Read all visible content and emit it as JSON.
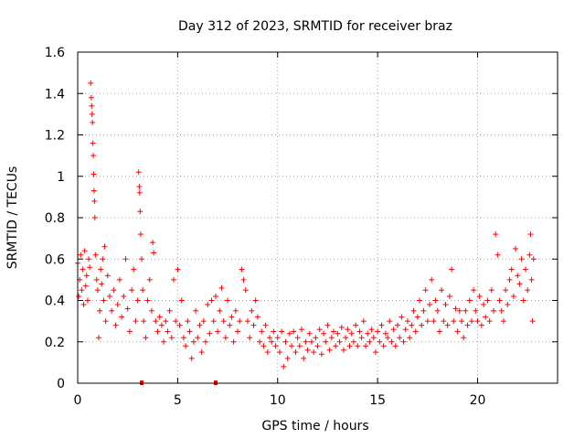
{
  "chart_data": {
    "type": "scatter",
    "title": "Day 312 of 2023, SRMTID for receiver braz",
    "xlabel": "GPS time / hours",
    "ylabel": "SRMTID / TECUs",
    "xlim": [
      0,
      24
    ],
    "ylim": [
      0,
      1.6
    ],
    "xticks": [
      0,
      5,
      10,
      15,
      20
    ],
    "xtick_labels": [
      "0",
      "5",
      "10",
      "15",
      "20"
    ],
    "yticks": [
      0,
      0.2,
      0.4,
      0.6,
      0.8,
      1.0,
      1.2,
      1.4,
      1.6
    ],
    "ytick_labels": [
      "0",
      "0.2",
      "0.4",
      "0.6",
      "0.8",
      "1",
      "1.2",
      "1.4",
      "1.6"
    ],
    "grid": true,
    "marker": "plus",
    "color": "#ff0000",
    "series": [
      {
        "name": "SRMTID",
        "points": [
          [
            0.0,
            0.58
          ],
          [
            0.05,
            0.42
          ],
          [
            0.1,
            0.5
          ],
          [
            0.15,
            0.62
          ],
          [
            0.2,
            0.45
          ],
          [
            0.25,
            0.55
          ],
          [
            0.3,
            0.38
          ],
          [
            0.35,
            0.64
          ],
          [
            0.4,
            0.47
          ],
          [
            0.45,
            0.52
          ],
          [
            0.5,
            0.4
          ],
          [
            0.55,
            0.6
          ],
          [
            0.6,
            0.56
          ],
          [
            0.65,
            1.45
          ],
          [
            0.68,
            1.38
          ],
          [
            0.7,
            1.34
          ],
          [
            0.72,
            1.3
          ],
          [
            0.74,
            1.26
          ],
          [
            0.76,
            1.16
          ],
          [
            0.78,
            1.1
          ],
          [
            0.8,
            1.01
          ],
          [
            0.82,
            0.93
          ],
          [
            0.84,
            0.88
          ],
          [
            0.86,
            0.8
          ],
          [
            0.9,
            0.62
          ],
          [
            0.95,
            0.5
          ],
          [
            1.0,
            0.45
          ],
          [
            1.05,
            0.22
          ],
          [
            1.1,
            0.35
          ],
          [
            1.15,
            0.55
          ],
          [
            1.2,
            0.48
          ],
          [
            1.25,
            0.6
          ],
          [
            1.3,
            0.4
          ],
          [
            1.35,
            0.66
          ],
          [
            1.4,
            0.3
          ],
          [
            1.5,
            0.52
          ],
          [
            1.6,
            0.42
          ],
          [
            1.7,
            0.35
          ],
          [
            1.8,
            0.45
          ],
          [
            1.9,
            0.28
          ],
          [
            2.0,
            0.38
          ],
          [
            2.1,
            0.5
          ],
          [
            2.2,
            0.32
          ],
          [
            2.3,
            0.42
          ],
          [
            2.4,
            0.6
          ],
          [
            2.5,
            0.36
          ],
          [
            2.6,
            0.25
          ],
          [
            2.7,
            0.45
          ],
          [
            2.8,
            0.55
          ],
          [
            2.9,
            0.3
          ],
          [
            3.0,
            0.4
          ],
          [
            3.05,
            1.02
          ],
          [
            3.08,
            0.95
          ],
          [
            3.1,
            0.92
          ],
          [
            3.12,
            0.83
          ],
          [
            3.15,
            0.72
          ],
          [
            3.2,
            0.6
          ],
          [
            3.25,
            0.45
          ],
          [
            3.3,
            0.3
          ],
          [
            3.4,
            0.22
          ],
          [
            3.5,
            0.4
          ],
          [
            3.6,
            0.5
          ],
          [
            3.7,
            0.35
          ],
          [
            3.75,
            0.68
          ],
          [
            3.8,
            0.63
          ],
          [
            3.9,
            0.3
          ],
          [
            4.0,
            0.25
          ],
          [
            4.1,
            0.32
          ],
          [
            4.2,
            0.28
          ],
          [
            4.3,
            0.2
          ],
          [
            4.4,
            0.3
          ],
          [
            4.5,
            0.25
          ],
          [
            4.6,
            0.35
          ],
          [
            4.7,
            0.22
          ],
          [
            4.8,
            0.5
          ],
          [
            4.9,
            0.3
          ],
          [
            5.0,
            0.55
          ],
          [
            5.1,
            0.28
          ],
          [
            5.2,
            0.4
          ],
          [
            5.3,
            0.22
          ],
          [
            5.4,
            0.18
          ],
          [
            5.5,
            0.3
          ],
          [
            5.6,
            0.25
          ],
          [
            5.7,
            0.12
          ],
          [
            5.8,
            0.2
          ],
          [
            5.9,
            0.35
          ],
          [
            6.0,
            0.22
          ],
          [
            6.1,
            0.28
          ],
          [
            6.2,
            0.15
          ],
          [
            6.3,
            0.3
          ],
          [
            6.4,
            0.2
          ],
          [
            6.5,
            0.38
          ],
          [
            6.6,
            0.24
          ],
          [
            6.7,
            0.4
          ],
          [
            6.8,
            0.3
          ],
          [
            6.9,
            0.42
          ],
          [
            7.0,
            0.25
          ],
          [
            7.1,
            0.35
          ],
          [
            7.2,
            0.46
          ],
          [
            7.3,
            0.3
          ],
          [
            7.4,
            0.22
          ],
          [
            7.5,
            0.4
          ],
          [
            7.6,
            0.28
          ],
          [
            7.7,
            0.32
          ],
          [
            7.8,
            0.2
          ],
          [
            7.9,
            0.35
          ],
          [
            8.0,
            0.25
          ],
          [
            8.1,
            0.3
          ],
          [
            8.2,
            0.55
          ],
          [
            8.3,
            0.5
          ],
          [
            8.4,
            0.45
          ],
          [
            8.5,
            0.3
          ],
          [
            8.6,
            0.22
          ],
          [
            8.7,
            0.35
          ],
          [
            8.8,
            0.28
          ],
          [
            8.9,
            0.4
          ],
          [
            9.0,
            0.32
          ],
          [
            9.1,
            0.2
          ],
          [
            9.2,
            0.25
          ],
          [
            9.3,
            0.18
          ],
          [
            9.4,
            0.28
          ],
          [
            9.5,
            0.15
          ],
          [
            9.6,
            0.22
          ],
          [
            9.7,
            0.2
          ],
          [
            9.8,
            0.25
          ],
          [
            9.9,
            0.18
          ],
          [
            10.0,
            0.22
          ],
          [
            10.1,
            0.15
          ],
          [
            10.2,
            0.25
          ],
          [
            10.3,
            0.08
          ],
          [
            10.4,
            0.2
          ],
          [
            10.5,
            0.12
          ],
          [
            10.6,
            0.24
          ],
          [
            10.7,
            0.18
          ],
          [
            10.8,
            0.25
          ],
          [
            10.9,
            0.15
          ],
          [
            11.0,
            0.22
          ],
          [
            11.1,
            0.18
          ],
          [
            11.2,
            0.26
          ],
          [
            11.3,
            0.12
          ],
          [
            11.4,
            0.2
          ],
          [
            11.5,
            0.16
          ],
          [
            11.6,
            0.24
          ],
          [
            11.7,
            0.2
          ],
          [
            11.8,
            0.15
          ],
          [
            11.9,
            0.22
          ],
          [
            12.0,
            0.18
          ],
          [
            12.1,
            0.26
          ],
          [
            12.2,
            0.14
          ],
          [
            12.3,
            0.24
          ],
          [
            12.4,
            0.2
          ],
          [
            12.5,
            0.28
          ],
          [
            12.6,
            0.16
          ],
          [
            12.7,
            0.22
          ],
          [
            12.8,
            0.25
          ],
          [
            12.9,
            0.18
          ],
          [
            13.0,
            0.24
          ],
          [
            13.1,
            0.2
          ],
          [
            13.2,
            0.27
          ],
          [
            13.3,
            0.16
          ],
          [
            13.4,
            0.22
          ],
          [
            13.5,
            0.26
          ],
          [
            13.6,
            0.18
          ],
          [
            13.7,
            0.24
          ],
          [
            13.8,
            0.2
          ],
          [
            13.9,
            0.28
          ],
          [
            14.0,
            0.18
          ],
          [
            14.1,
            0.25
          ],
          [
            14.2,
            0.22
          ],
          [
            14.3,
            0.3
          ],
          [
            14.4,
            0.18
          ],
          [
            14.5,
            0.24
          ],
          [
            14.6,
            0.2
          ],
          [
            14.7,
            0.26
          ],
          [
            14.8,
            0.22
          ],
          [
            14.9,
            0.15
          ],
          [
            15.0,
            0.25
          ],
          [
            15.1,
            0.2
          ],
          [
            15.2,
            0.28
          ],
          [
            15.3,
            0.18
          ],
          [
            15.4,
            0.24
          ],
          [
            15.5,
            0.22
          ],
          [
            15.6,
            0.3
          ],
          [
            15.7,
            0.2
          ],
          [
            15.8,
            0.26
          ],
          [
            15.9,
            0.18
          ],
          [
            16.0,
            0.28
          ],
          [
            16.1,
            0.22
          ],
          [
            16.2,
            0.32
          ],
          [
            16.3,
            0.2
          ],
          [
            16.4,
            0.26
          ],
          [
            16.5,
            0.3
          ],
          [
            16.6,
            0.22
          ],
          [
            16.7,
            0.28
          ],
          [
            16.8,
            0.35
          ],
          [
            16.9,
            0.25
          ],
          [
            17.0,
            0.32
          ],
          [
            17.1,
            0.4
          ],
          [
            17.2,
            0.28
          ],
          [
            17.3,
            0.35
          ],
          [
            17.4,
            0.45
          ],
          [
            17.5,
            0.3
          ],
          [
            17.6,
            0.38
          ],
          [
            17.7,
            0.5
          ],
          [
            17.8,
            0.3
          ],
          [
            17.9,
            0.4
          ],
          [
            18.0,
            0.35
          ],
          [
            18.1,
            0.25
          ],
          [
            18.2,
            0.45
          ],
          [
            18.3,
            0.3
          ],
          [
            18.4,
            0.38
          ],
          [
            18.5,
            0.28
          ],
          [
            18.6,
            0.42
          ],
          [
            18.7,
            0.55
          ],
          [
            18.8,
            0.3
          ],
          [
            18.9,
            0.36
          ],
          [
            19.0,
            0.25
          ],
          [
            19.1,
            0.35
          ],
          [
            19.2,
            0.3
          ],
          [
            19.3,
            0.22
          ],
          [
            19.4,
            0.35
          ],
          [
            19.5,
            0.28
          ],
          [
            19.6,
            0.4
          ],
          [
            19.7,
            0.3
          ],
          [
            19.8,
            0.45
          ],
          [
            19.9,
            0.35
          ],
          [
            20.0,
            0.3
          ],
          [
            20.1,
            0.42
          ],
          [
            20.2,
            0.28
          ],
          [
            20.3,
            0.38
          ],
          [
            20.4,
            0.32
          ],
          [
            20.5,
            0.4
          ],
          [
            20.6,
            0.3
          ],
          [
            20.7,
            0.45
          ],
          [
            20.8,
            0.35
          ],
          [
            20.9,
            0.72
          ],
          [
            21.0,
            0.62
          ],
          [
            21.1,
            0.4
          ],
          [
            21.2,
            0.35
          ],
          [
            21.3,
            0.3
          ],
          [
            21.4,
            0.45
          ],
          [
            21.5,
            0.38
          ],
          [
            21.6,
            0.5
          ],
          [
            21.7,
            0.55
          ],
          [
            21.8,
            0.42
          ],
          [
            21.9,
            0.65
          ],
          [
            22.0,
            0.52
          ],
          [
            22.1,
            0.48
          ],
          [
            22.2,
            0.6
          ],
          [
            22.3,
            0.4
          ],
          [
            22.4,
            0.55
          ],
          [
            22.5,
            0.45
          ],
          [
            22.6,
            0.62
          ],
          [
            22.65,
            0.72
          ],
          [
            22.7,
            0.5
          ],
          [
            22.75,
            0.3
          ],
          [
            22.8,
            0.6
          ]
        ]
      }
    ],
    "annotations": [
      {
        "type": "x-axis-marker",
        "x": 3.2,
        "y": 0
      },
      {
        "type": "x-axis-marker",
        "x": 6.9,
        "y": 0
      }
    ]
  }
}
